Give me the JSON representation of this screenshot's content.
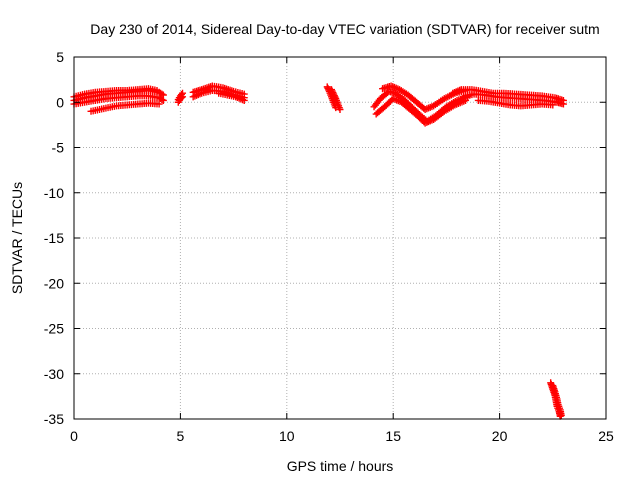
{
  "chart_data": {
    "type": "scatter",
    "title": "Day 230 of 2014, Sidereal Day-to-day VTEC variation (SDTVAR) for receiver sutm",
    "xlabel": "GPS time / hours",
    "ylabel": "SDTVAR / TECUs",
    "xlim": [
      0,
      25
    ],
    "ylim": [
      -35,
      5
    ],
    "xticks": [
      0,
      5,
      10,
      15,
      20,
      25
    ],
    "yticks": [
      5,
      0,
      -5,
      -10,
      -15,
      -20,
      -25,
      -30,
      -35
    ],
    "grid": true,
    "marker": "+",
    "series": [
      {
        "name": "SDTVAR",
        "color": "#ff0000",
        "segments": [
          {
            "points": [
              [
                0.0,
                0.2
              ],
              [
                0.5,
                0.5
              ],
              [
                1.0,
                0.7
              ],
              [
                1.5,
                0.9
              ],
              [
                2.0,
                1.0
              ],
              [
                2.5,
                1.1
              ],
              [
                3.0,
                1.2
              ],
              [
                3.5,
                1.3
              ],
              [
                4.0,
                1.1
              ],
              [
                4.2,
                0.8
              ]
            ]
          },
          {
            "points": [
              [
                0.0,
                -0.2
              ],
              [
                0.5,
                0.0
              ],
              [
                1.0,
                0.2
              ],
              [
                1.5,
                0.4
              ],
              [
                2.0,
                0.5
              ],
              [
                2.5,
                0.6
              ],
              [
                3.0,
                0.7
              ],
              [
                3.5,
                0.7
              ],
              [
                4.0,
                0.5
              ],
              [
                4.2,
                0.2
              ]
            ]
          },
          {
            "points": [
              [
                0.8,
                -1.0
              ],
              [
                1.2,
                -0.8
              ],
              [
                1.6,
                -0.6
              ],
              [
                2.0,
                -0.4
              ],
              [
                2.5,
                -0.3
              ],
              [
                3.0,
                -0.2
              ],
              [
                3.5,
                -0.1
              ],
              [
                4.0,
                -0.2
              ]
            ]
          },
          {
            "points": [
              [
                0.0,
                0.6
              ],
              [
                0.5,
                0.9
              ],
              [
                1.0,
                1.1
              ],
              [
                1.5,
                1.2
              ],
              [
                2.0,
                1.3
              ],
              [
                2.5,
                1.3
              ],
              [
                3.0,
                1.4
              ],
              [
                3.5,
                1.5
              ],
              [
                3.9,
                1.3
              ]
            ]
          },
          {
            "points": [
              [
                4.9,
                0.3
              ],
              [
                5.0,
                0.7
              ],
              [
                5.1,
                1.0
              ]
            ]
          },
          {
            "points": [
              [
                4.9,
                0.0
              ],
              [
                5.0,
                0.4
              ],
              [
                5.1,
                0.6
              ]
            ]
          },
          {
            "points": [
              [
                5.6,
                1.1
              ],
              [
                6.0,
                1.4
              ],
              [
                6.5,
                1.8
              ],
              [
                7.0,
                1.6
              ],
              [
                7.5,
                1.2
              ],
              [
                8.0,
                0.9
              ]
            ]
          },
          {
            "points": [
              [
                5.6,
                0.6
              ],
              [
                6.0,
                1.0
              ],
              [
                6.5,
                1.3
              ],
              [
                7.0,
                1.2
              ],
              [
                7.5,
                0.8
              ],
              [
                8.0,
                0.5
              ]
            ]
          },
          {
            "points": [
              [
                6.8,
                1.0
              ],
              [
                7.2,
                0.8
              ],
              [
                7.6,
                0.6
              ],
              [
                8.0,
                0.2
              ]
            ]
          },
          {
            "points": [
              [
                11.9,
                1.7
              ],
              [
                12.0,
                1.2
              ],
              [
                12.1,
                0.6
              ],
              [
                12.2,
                0.0
              ],
              [
                12.3,
                -0.6
              ]
            ]
          },
          {
            "points": [
              [
                12.1,
                1.4
              ],
              [
                12.2,
                0.9
              ],
              [
                12.3,
                0.4
              ],
              [
                12.4,
                -0.2
              ],
              [
                12.5,
                -0.8
              ]
            ]
          },
          {
            "points": [
              [
                14.1,
                -0.5
              ],
              [
                14.4,
                0.4
              ],
              [
                14.8,
                1.2
              ],
              [
                15.1,
                1.0
              ],
              [
                15.5,
                0.3
              ],
              [
                15.9,
                -0.6
              ],
              [
                16.3,
                -1.5
              ],
              [
                16.6,
                -2.1
              ],
              [
                17.0,
                -1.5
              ],
              [
                17.5,
                -0.5
              ],
              [
                18.0,
                0.2
              ],
              [
                18.5,
                0.6
              ]
            ]
          },
          {
            "points": [
              [
                14.2,
                -1.3
              ],
              [
                14.6,
                -0.5
              ],
              [
                15.0,
                0.4
              ],
              [
                15.4,
                0.0
              ],
              [
                15.8,
                -0.8
              ],
              [
                16.2,
                -1.6
              ],
              [
                16.5,
                -2.3
              ],
              [
                16.9,
                -1.9
              ],
              [
                17.4,
                -1.0
              ],
              [
                17.9,
                -0.3
              ],
              [
                18.4,
                0.2
              ]
            ]
          },
          {
            "points": [
              [
                14.5,
                1.5
              ],
              [
                14.9,
                1.8
              ],
              [
                15.3,
                1.4
              ],
              [
                15.7,
                0.8
              ],
              [
                16.1,
                0.0
              ],
              [
                16.5,
                -0.8
              ],
              [
                16.9,
                -0.4
              ],
              [
                17.4,
                0.4
              ],
              [
                17.9,
                1.0
              ],
              [
                18.4,
                1.3
              ]
            ]
          },
          {
            "points": [
              [
                17.8,
                1.0
              ],
              [
                18.2,
                1.4
              ],
              [
                18.7,
                1.4
              ],
              [
                19.2,
                1.2
              ],
              [
                19.7,
                1.0
              ],
              [
                20.2,
                1.0
              ],
              [
                20.8,
                0.9
              ],
              [
                21.4,
                0.8
              ],
              [
                22.0,
                0.7
              ],
              [
                22.6,
                0.5
              ],
              [
                23.0,
                0.2
              ]
            ]
          },
          {
            "points": [
              [
                18.3,
                0.6
              ],
              [
                18.8,
                0.9
              ],
              [
                19.3,
                0.8
              ],
              [
                19.8,
                0.6
              ],
              [
                20.3,
                0.5
              ],
              [
                20.9,
                0.4
              ],
              [
                21.5,
                0.3
              ],
              [
                22.1,
                0.2
              ],
              [
                22.7,
                0.0
              ],
              [
                23.0,
                -0.2
              ]
            ]
          },
          {
            "points": [
              [
                19.0,
                0.2
              ],
              [
                19.5,
                0.1
              ],
              [
                20.0,
                -0.1
              ],
              [
                20.5,
                -0.3
              ],
              [
                21.0,
                -0.4
              ],
              [
                21.5,
                -0.3
              ],
              [
                22.0,
                -0.2
              ],
              [
                22.5,
                -0.3
              ]
            ]
          },
          {
            "points": [
              [
                22.4,
                -31.0
              ],
              [
                22.5,
                -31.7
              ],
              [
                22.6,
                -32.4
              ],
              [
                22.65,
                -33.0
              ],
              [
                22.7,
                -33.6
              ],
              [
                22.8,
                -34.2
              ],
              [
                22.85,
                -34.7
              ]
            ]
          },
          {
            "points": [
              [
                22.5,
                -31.3
              ],
              [
                22.6,
                -32.0
              ],
              [
                22.7,
                -32.8
              ],
              [
                22.75,
                -33.4
              ],
              [
                22.85,
                -34.0
              ],
              [
                22.9,
                -34.6
              ]
            ]
          }
        ]
      }
    ]
  }
}
